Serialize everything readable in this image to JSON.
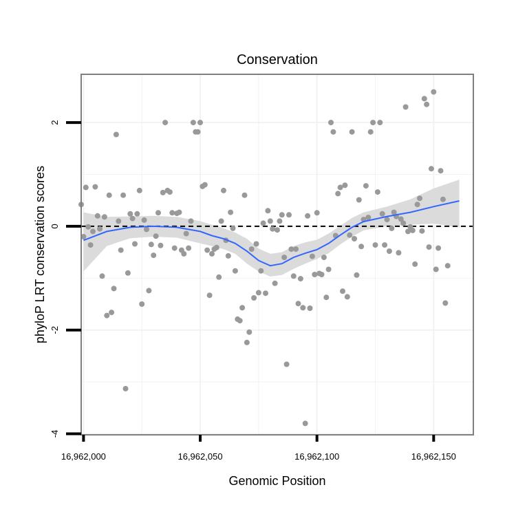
{
  "chart_data": {
    "type": "scatter",
    "title": "Conservation",
    "xlabel": "Genomic Position",
    "ylabel": "phyloP LRT conservation scores",
    "xlim": [
      16961999,
      16962167
    ],
    "ylim": [
      -4.02,
      2.93
    ],
    "grid": true,
    "x_ticks": [
      16962000,
      16962050,
      16962100,
      16962150
    ],
    "x_tick_labels": [
      "16,962,000",
      "16,962,050",
      "16,962,100",
      "16,962,150"
    ],
    "y_ticks": [
      -4,
      -2,
      0,
      2
    ],
    "y_tick_labels": [
      "-4",
      "-2",
      "0",
      "2"
    ],
    "reference_line": {
      "y": 0,
      "style": "dashed"
    },
    "colors": {
      "points": "#999999",
      "smooth_line": "#3366ff",
      "ribbon": "#d9d9d9",
      "frame": "#7f7f7f"
    },
    "points": [
      {
        "x": 16961999,
        "y": 0.42
      },
      {
        "x": 16962000,
        "y": -0.2
      },
      {
        "x": 16962001,
        "y": 0.75
      },
      {
        "x": 16962002,
        "y": -0.01
      },
      {
        "x": 16962003,
        "y": -0.36
      },
      {
        "x": 16962004,
        "y": -0.1
      },
      {
        "x": 16962005,
        "y": 0.76
      },
      {
        "x": 16962006,
        "y": 0.2
      },
      {
        "x": 16962007,
        "y": -0.05
      },
      {
        "x": 16962008,
        "y": -0.96
      },
      {
        "x": 16962009,
        "y": 0.18
      },
      {
        "x": 16962010,
        "y": -1.72
      },
      {
        "x": 16962011,
        "y": 0.6
      },
      {
        "x": 16962012,
        "y": -1.66
      },
      {
        "x": 16962013,
        "y": -1.2
      },
      {
        "x": 16962014,
        "y": 1.77
      },
      {
        "x": 16962015,
        "y": 0.1
      },
      {
        "x": 16962016,
        "y": -0.46
      },
      {
        "x": 16962017,
        "y": 0.6
      },
      {
        "x": 16962018,
        "y": -3.13
      },
      {
        "x": 16962019,
        "y": -0.9
      },
      {
        "x": 16962020,
        "y": 0.24
      },
      {
        "x": 16962021,
        "y": 0.15
      },
      {
        "x": 16962022,
        "y": -0.34
      },
      {
        "x": 16962023,
        "y": 0.24
      },
      {
        "x": 16962024,
        "y": 0.69
      },
      {
        "x": 16962025,
        "y": -1.5
      },
      {
        "x": 16962026,
        "y": 0.12
      },
      {
        "x": 16962027,
        "y": -0.06
      },
      {
        "x": 16962028,
        "y": -1.24
      },
      {
        "x": 16962029,
        "y": -0.35
      },
      {
        "x": 16962030,
        "y": -0.56
      },
      {
        "x": 16962031,
        "y": -0.19
      },
      {
        "x": 16962032,
        "y": 0.26
      },
      {
        "x": 16962033,
        "y": -0.37
      },
      {
        "x": 16962034,
        "y": 0.65
      },
      {
        "x": 16962035,
        "y": 2.0
      },
      {
        "x": 16962036,
        "y": 0.69
      },
      {
        "x": 16962037,
        "y": 0.66
      },
      {
        "x": 16962038,
        "y": 0.26
      },
      {
        "x": 16962039,
        "y": -0.42
      },
      {
        "x": 16962040,
        "y": 0.25
      },
      {
        "x": 16962041,
        "y": 0.27
      },
      {
        "x": 16962042,
        "y": -0.46
      },
      {
        "x": 16962043,
        "y": -0.53
      },
      {
        "x": 16962044,
        "y": -0.14
      },
      {
        "x": 16962045,
        "y": -0.42
      },
      {
        "x": 16962046,
        "y": 0.1
      },
      {
        "x": 16962047,
        "y": 2.0
      },
      {
        "x": 16962048,
        "y": 1.82
      },
      {
        "x": 16962049,
        "y": 1.82
      },
      {
        "x": 16962050,
        "y": 2.0
      },
      {
        "x": 16962051,
        "y": 0.77
      },
      {
        "x": 16962052,
        "y": 0.8
      },
      {
        "x": 16962053,
        "y": -0.46
      },
      {
        "x": 16962054,
        "y": -1.33
      },
      {
        "x": 16962055,
        "y": -0.53
      },
      {
        "x": 16962056,
        "y": -0.44
      },
      {
        "x": 16962057,
        "y": -0.41
      },
      {
        "x": 16962058,
        "y": -0.98
      },
      {
        "x": 16962059,
        "y": 0.1
      },
      {
        "x": 16962060,
        "y": 0.69
      },
      {
        "x": 16962061,
        "y": -0.27
      },
      {
        "x": 16962062,
        "y": -0.57
      },
      {
        "x": 16962063,
        "y": 0.27
      },
      {
        "x": 16962064,
        "y": -0.04
      },
      {
        "x": 16962065,
        "y": -0.86
      },
      {
        "x": 16962066,
        "y": -1.79
      },
      {
        "x": 16962067,
        "y": -1.82
      },
      {
        "x": 16962068,
        "y": -1.57
      },
      {
        "x": 16962069,
        "y": 0.6
      },
      {
        "x": 16962070,
        "y": -2.24
      },
      {
        "x": 16962071,
        "y": -2.04
      },
      {
        "x": 16962072,
        "y": -0.44
      },
      {
        "x": 16962073,
        "y": -1.38
      },
      {
        "x": 16962074,
        "y": -0.34
      },
      {
        "x": 16962075,
        "y": -1.28
      },
      {
        "x": 16962076,
        "y": -0.86
      },
      {
        "x": 16962077,
        "y": 0.06
      },
      {
        "x": 16962078,
        "y": -1.29
      },
      {
        "x": 16962079,
        "y": 0.3
      },
      {
        "x": 16962080,
        "y": 0.1
      },
      {
        "x": 16962081,
        "y": -0.05
      },
      {
        "x": 16962082,
        "y": -1.1
      },
      {
        "x": 16962083,
        "y": -0.07
      },
      {
        "x": 16962084,
        "y": 0.1
      },
      {
        "x": 16962085,
        "y": 0.22
      },
      {
        "x": 16962086,
        "y": -0.6
      },
      {
        "x": 16962087,
        "y": -2.66
      },
      {
        "x": 16962088,
        "y": 0.22
      },
      {
        "x": 16962089,
        "y": -0.44
      },
      {
        "x": 16962090,
        "y": -0.96
      },
      {
        "x": 16962091,
        "y": -0.44
      },
      {
        "x": 16962092,
        "y": -1.49
      },
      {
        "x": 16962093,
        "y": -1.01
      },
      {
        "x": 16962094,
        "y": -1.57
      },
      {
        "x": 16962095,
        "y": -3.8
      },
      {
        "x": 16962096,
        "y": 0.2
      },
      {
        "x": 16962097,
        "y": -1.58
      },
      {
        "x": 16962098,
        "y": -0.58
      },
      {
        "x": 16962099,
        "y": -0.93
      },
      {
        "x": 16962100,
        "y": 0.26
      },
      {
        "x": 16962101,
        "y": -0.91
      },
      {
        "x": 16962102,
        "y": -0.93
      },
      {
        "x": 16962103,
        "y": -0.6
      },
      {
        "x": 16962104,
        "y": -1.37
      },
      {
        "x": 16962105,
        "y": -0.83
      },
      {
        "x": 16962106,
        "y": 2.0
      },
      {
        "x": 16962107,
        "y": 1.82
      },
      {
        "x": 16962108,
        "y": -0.18
      },
      {
        "x": 16962109,
        "y": 0.63
      },
      {
        "x": 16962110,
        "y": 0.75
      },
      {
        "x": 16962111,
        "y": -1.25
      },
      {
        "x": 16962112,
        "y": 0.79
      },
      {
        "x": 16962113,
        "y": -1.36
      },
      {
        "x": 16962114,
        "y": -0.17
      },
      {
        "x": 16962115,
        "y": 1.82
      },
      {
        "x": 16962116,
        "y": -0.24
      },
      {
        "x": 16962117,
        "y": -0.94
      },
      {
        "x": 16962118,
        "y": 0.51
      },
      {
        "x": 16962119,
        "y": -0.39
      },
      {
        "x": 16962120,
        "y": 0.13
      },
      {
        "x": 16962121,
        "y": 0.78
      },
      {
        "x": 16962122,
        "y": 0.17
      },
      {
        "x": 16962123,
        "y": 1.82
      },
      {
        "x": 16962124,
        "y": 2.0
      },
      {
        "x": 16962125,
        "y": -0.36
      },
      {
        "x": 16962126,
        "y": 0.66
      },
      {
        "x": 16962127,
        "y": 2.0
      },
      {
        "x": 16962128,
        "y": 0.24
      },
      {
        "x": 16962129,
        "y": -0.36
      },
      {
        "x": 16962130,
        "y": 0.13
      },
      {
        "x": 16962131,
        "y": -0.48
      },
      {
        "x": 16962132,
        "y": -0.04
      },
      {
        "x": 16962133,
        "y": 0.27
      },
      {
        "x": 16962134,
        "y": 0.19
      },
      {
        "x": 16962135,
        "y": -0.51
      },
      {
        "x": 16962136,
        "y": 0.14
      },
      {
        "x": 16962137,
        "y": 0.06
      },
      {
        "x": 16962138,
        "y": 2.3
      },
      {
        "x": 16962139,
        "y": -0.1
      },
      {
        "x": 16962140,
        "y": -0.01
      },
      {
        "x": 16962141,
        "y": -0.08
      },
      {
        "x": 16962142,
        "y": -0.73
      },
      {
        "x": 16962143,
        "y": 0.42
      },
      {
        "x": 16962144,
        "y": 0.54
      },
      {
        "x": 16962145,
        "y": -0.09
      },
      {
        "x": 16962146,
        "y": 2.46
      },
      {
        "x": 16962147,
        "y": 2.35
      },
      {
        "x": 16962148,
        "y": -0.4
      },
      {
        "x": 16962149,
        "y": 1.11
      },
      {
        "x": 16962150,
        "y": 2.59
      },
      {
        "x": 16962151,
        "y": -0.83
      },
      {
        "x": 16962152,
        "y": -0.42
      },
      {
        "x": 16962153,
        "y": 1.07
      },
      {
        "x": 16962154,
        "y": 0.52
      },
      {
        "x": 16962155,
        "y": -1.48
      },
      {
        "x": 16962156,
        "y": -0.76
      }
    ],
    "smooth": {
      "x": [
        16962000,
        16962010,
        16962020,
        16962030,
        16962040,
        16962050,
        16962055,
        16962060,
        16962065,
        16962070,
        16962075,
        16962080,
        16962085,
        16962090,
        16962095,
        16962100,
        16962105,
        16962110,
        16962115,
        16962120,
        16962130,
        16962140,
        16962150,
        16962161
      ],
      "y": [
        -0.27,
        -0.1,
        -0.02,
        0.0,
        -0.02,
        -0.1,
        -0.18,
        -0.24,
        -0.33,
        -0.48,
        -0.66,
        -0.76,
        -0.72,
        -0.6,
        -0.52,
        -0.45,
        -0.33,
        -0.17,
        -0.02,
        0.09,
        0.19,
        0.27,
        0.38,
        0.49
      ],
      "lower": [
        -0.87,
        -0.38,
        -0.23,
        -0.2,
        -0.22,
        -0.33,
        -0.38,
        -0.44,
        -0.53,
        -0.72,
        -0.87,
        -0.97,
        -0.94,
        -0.82,
        -0.72,
        -0.63,
        -0.52,
        -0.35,
        -0.2,
        -0.08,
        0.0,
        0.03,
        0.05,
        -0.02
      ],
      "upper": [
        0.27,
        0.18,
        0.19,
        0.2,
        0.18,
        0.1,
        0.03,
        -0.04,
        -0.12,
        -0.24,
        -0.43,
        -0.53,
        -0.5,
        -0.38,
        -0.31,
        -0.26,
        -0.14,
        0.01,
        0.16,
        0.27,
        0.38,
        0.52,
        0.73,
        0.9
      ]
    }
  }
}
